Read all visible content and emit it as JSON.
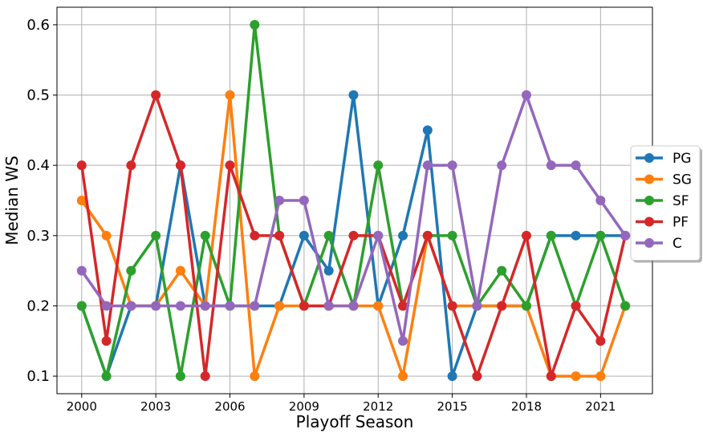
{
  "chart_data": {
    "type": "line",
    "title": "",
    "xlabel": "Playoff Season",
    "ylabel": "Median WS",
    "x": [
      2000,
      2001,
      2002,
      2003,
      2004,
      2005,
      2006,
      2007,
      2008,
      2009,
      2010,
      2011,
      2012,
      2013,
      2014,
      2015,
      2016,
      2017,
      2018,
      2019,
      2020,
      2021,
      2022
    ],
    "x_ticks": [
      2000,
      2003,
      2006,
      2009,
      2012,
      2015,
      2018,
      2021
    ],
    "y_ticks": [
      0.1,
      0.2,
      0.3,
      0.4,
      0.5,
      0.6
    ],
    "y_tick_labels": [
      "0.1",
      "0.2",
      "0.3",
      "0.4",
      "0.5",
      "0.6"
    ],
    "x_tick_labels": [
      "2000",
      "2003",
      "2006",
      "2009",
      "2012",
      "2015",
      "2018",
      "2021"
    ],
    "xlim": [
      1999,
      2023.1
    ],
    "ylim": [
      0.075,
      0.625
    ],
    "grid": true,
    "legend_position": "center-right",
    "series": [
      {
        "name": "PG",
        "color": "#1f77b4",
        "values": [
          0.2,
          0.1,
          0.2,
          0.2,
          0.4,
          0.2,
          0.2,
          0.2,
          0.2,
          0.3,
          0.25,
          0.5,
          0.2,
          0.3,
          0.45,
          0.1,
          0.2,
          0.2,
          0.2,
          0.3,
          0.3,
          0.3,
          0.3
        ]
      },
      {
        "name": "SG",
        "color": "#ff7f0e",
        "values": [
          0.35,
          0.3,
          0.2,
          0.2,
          0.25,
          0.2,
          0.5,
          0.1,
          0.2,
          0.2,
          0.2,
          0.2,
          0.2,
          0.1,
          0.3,
          0.2,
          0.2,
          0.2,
          0.2,
          0.1,
          0.1,
          0.1,
          0.2
        ]
      },
      {
        "name": "SF",
        "color": "#2ca02c",
        "values": [
          0.2,
          0.1,
          0.25,
          0.3,
          0.1,
          0.3,
          0.2,
          0.6,
          0.3,
          0.2,
          0.3,
          0.2,
          0.4,
          0.2,
          0.3,
          0.3,
          0.2,
          0.25,
          0.2,
          0.3,
          0.2,
          0.3,
          0.2
        ]
      },
      {
        "name": "PF",
        "color": "#d62728",
        "values": [
          0.4,
          0.15,
          0.4,
          0.5,
          0.4,
          0.1,
          0.4,
          0.3,
          0.3,
          0.2,
          0.2,
          0.3,
          0.3,
          0.2,
          0.3,
          0.2,
          0.1,
          0.2,
          0.3,
          0.1,
          0.2,
          0.15,
          0.3
        ]
      },
      {
        "name": "C",
        "color": "#9467bd",
        "values": [
          0.25,
          0.2,
          0.2,
          0.2,
          0.2,
          0.2,
          0.2,
          0.2,
          0.35,
          0.35,
          0.2,
          0.2,
          0.3,
          0.15,
          0.4,
          0.4,
          0.2,
          0.4,
          0.5,
          0.4,
          0.4,
          0.35,
          0.3
        ]
      }
    ]
  }
}
